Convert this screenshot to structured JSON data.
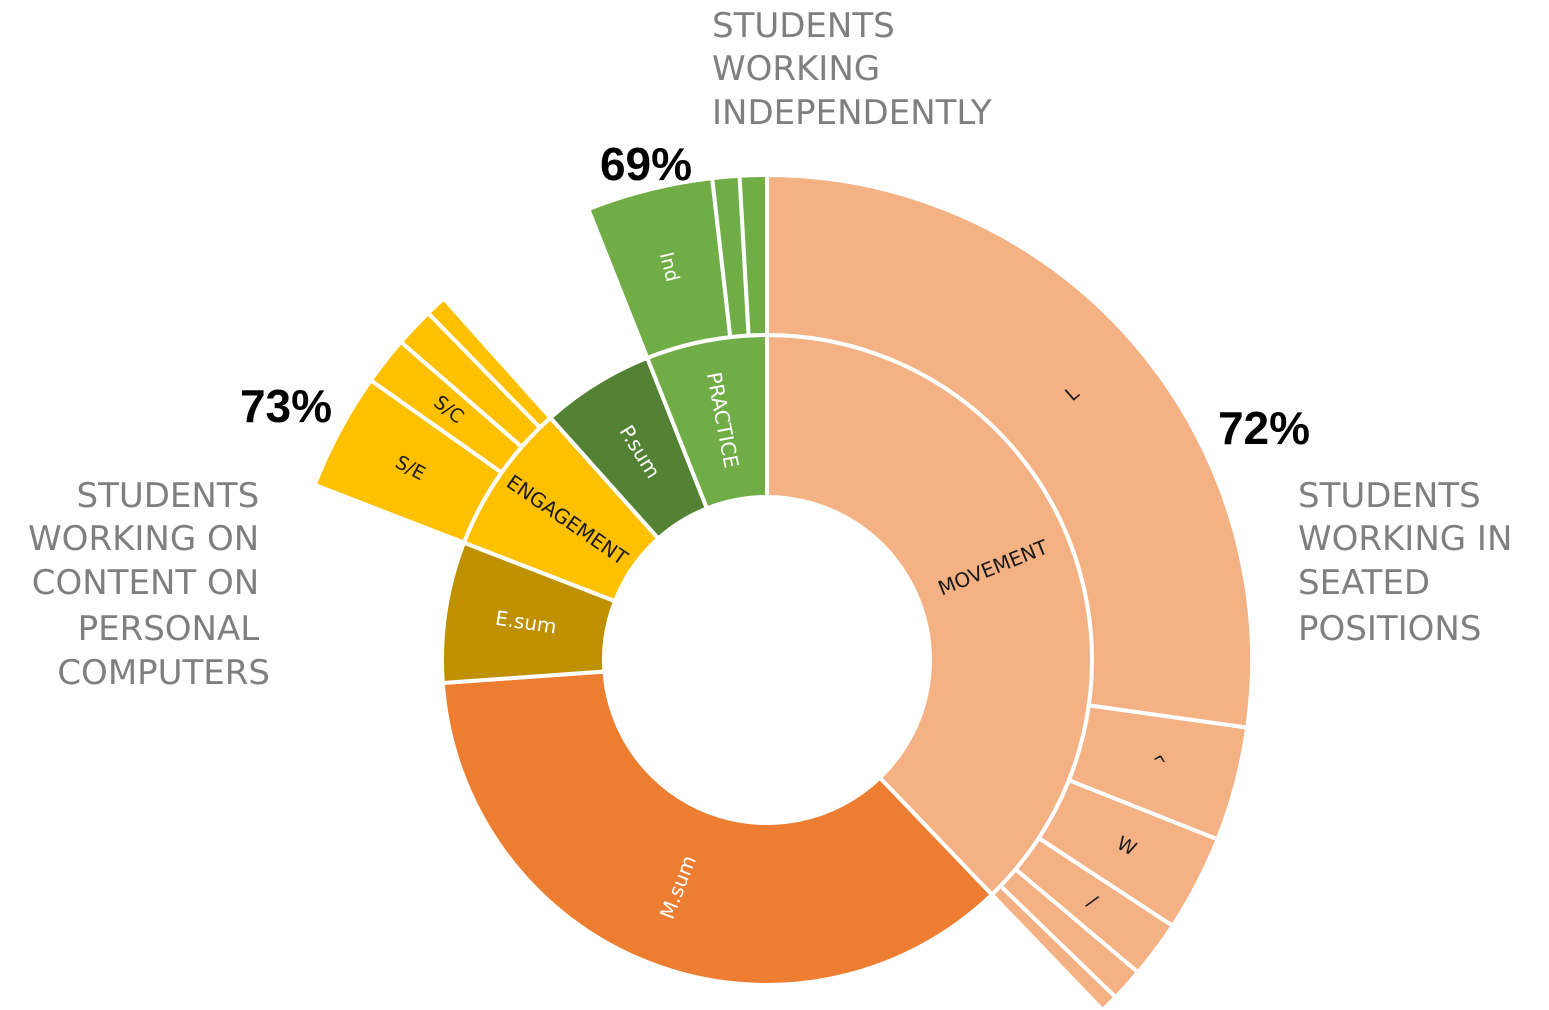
{
  "chart_data": {
    "type": "sunburst",
    "segments": [
      {
        "name": "MOVEMENT",
        "color": "#f4b183",
        "value": 37.8,
        "children": [
          {
            "name": "L",
            "value": 27.2
          },
          {
            "name": "^",
            "value": 3.8
          },
          {
            "name": "W",
            "value": 3.2
          },
          {
            "name": "/",
            "value": 1.9
          },
          {
            "name": null,
            "value": 1.1
          },
          {
            "name": null,
            "value": 0.6
          }
        ]
      },
      {
        "name": "M.sum",
        "color": "#ed7d31",
        "value": 36,
        "children": []
      },
      {
        "name": "E.sum",
        "color": "#bf9000",
        "value": 7,
        "children": []
      },
      {
        "name": "ENGAGEMENT",
        "color": "#ffc000",
        "value": 7.5,
        "children": [
          {
            "name": "S/E",
            "value": 3.9
          },
          {
            "name": "S/C",
            "value": 1.6
          },
          {
            "name": null,
            "value": 1.3
          },
          {
            "name": null,
            "value": 0.7
          }
        ]
      },
      {
        "name": "P.sum",
        "color": "#548235",
        "value": 5.6,
        "children": []
      },
      {
        "name": "PRACTICE",
        "color": "#70ad47",
        "value": 6,
        "children": [
          {
            "name": "Ind",
            "value": 4.2
          },
          {
            "name": null,
            "value": 0.9
          },
          {
            "name": null,
            "value": 0.9
          }
        ]
      }
    ],
    "annotations": [
      {
        "text": "69%"
      },
      {
        "text": "73%"
      },
      {
        "text": "72%"
      }
    ],
    "captions": [
      {
        "lines": [
          "STUDENTS",
          "WORKING",
          "INDEPENDENTLY"
        ]
      },
      {
        "lines": [
          "STUDENTS",
          "WORKING ON",
          "CONTENT ON",
          "PERSONAL",
          "COMPUTERS"
        ]
      },
      {
        "lines": [
          "STUDENTS",
          "WORKING IN",
          "SEATED",
          "POSITIONS"
        ]
      }
    ]
  }
}
